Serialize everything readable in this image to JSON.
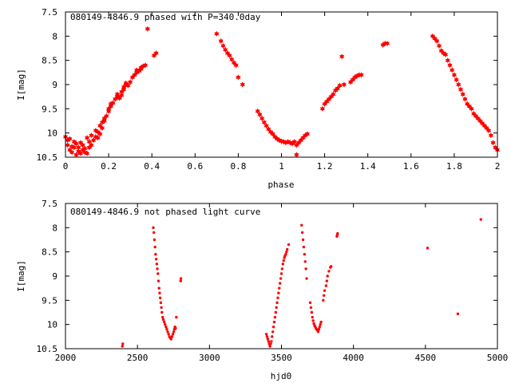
{
  "chart_data": [
    {
      "type": "scatter",
      "title": "080149-4846.9 phased with P=340.0day",
      "xlabel": "phase",
      "ylabel": "I[mag]",
      "xlim": [
        0,
        2
      ],
      "ylim": [
        7.5,
        10.5
      ],
      "y_inverted": true,
      "grid": false,
      "legend": "none",
      "marker": "filled-star",
      "color": "#ff0000",
      "xticks": [
        "0",
        "0.2",
        "0.4",
        "0.6",
        "0.8",
        "1",
        "1.2",
        "1.4",
        "1.6",
        "1.8",
        "2"
      ],
      "yticks": [
        "7.5",
        "8",
        "8.5",
        "9",
        "9.5",
        "10",
        "10.5"
      ],
      "series": [
        {
          "points": [
            [
              0.0,
              10.08
            ],
            [
              0.01,
              10.15
            ],
            [
              0.01,
              10.25
            ],
            [
              0.02,
              10.35
            ],
            [
              0.02,
              10.12
            ],
            [
              0.03,
              10.28
            ],
            [
              0.03,
              10.4
            ],
            [
              0.04,
              10.18
            ],
            [
              0.04,
              10.3
            ],
            [
              0.05,
              10.45
            ],
            [
              0.05,
              10.22
            ],
            [
              0.06,
              10.38
            ],
            [
              0.06,
              10.3
            ],
            [
              0.07,
              10.42
            ],
            [
              0.07,
              10.2
            ],
            [
              0.08,
              10.35
            ],
            [
              0.08,
              10.25
            ],
            [
              0.09,
              10.4
            ],
            [
              0.09,
              10.32
            ],
            [
              0.1,
              10.42
            ],
            [
              0.1,
              10.1
            ],
            [
              0.11,
              10.3
            ],
            [
              0.11,
              10.18
            ],
            [
              0.12,
              10.05
            ],
            [
              0.12,
              10.25
            ],
            [
              0.13,
              10.15
            ],
            [
              0.14,
              10.08
            ],
            [
              0.14,
              9.95
            ],
            [
              0.15,
              10.1
            ],
            [
              0.15,
              9.98
            ],
            [
              0.16,
              10.02
            ],
            [
              0.16,
              9.85
            ],
            [
              0.17,
              9.9
            ],
            [
              0.17,
              9.78
            ],
            [
              0.18,
              9.75
            ],
            [
              0.18,
              9.7
            ],
            [
              0.19,
              9.65
            ],
            [
              0.2,
              9.55
            ],
            [
              0.2,
              9.5
            ],
            [
              0.21,
              9.45
            ],
            [
              0.21,
              9.4
            ],
            [
              0.22,
              9.38
            ],
            [
              0.23,
              9.3
            ],
            [
              0.24,
              9.25
            ],
            [
              0.24,
              9.2
            ],
            [
              0.25,
              9.28
            ],
            [
              0.26,
              9.22
            ],
            [
              0.26,
              9.15
            ],
            [
              0.27,
              9.1
            ],
            [
              0.27,
              9.05
            ],
            [
              0.28,
              9.0
            ],
            [
              0.28,
              8.97
            ],
            [
              0.29,
              9.02
            ],
            [
              0.3,
              8.95
            ],
            [
              0.31,
              8.85
            ],
            [
              0.32,
              8.8
            ],
            [
              0.33,
              8.75
            ],
            [
              0.33,
              8.7
            ],
            [
              0.34,
              8.72
            ],
            [
              0.35,
              8.68
            ],
            [
              0.35,
              8.65
            ],
            [
              0.36,
              8.62
            ],
            [
              0.37,
              8.6
            ],
            [
              0.38,
              7.85
            ],
            [
              0.41,
              8.4
            ],
            [
              0.42,
              8.35
            ],
            [
              0.7,
              7.95
            ],
            [
              0.72,
              8.1
            ],
            [
              0.73,
              8.2
            ],
            [
              0.74,
              8.28
            ],
            [
              0.75,
              8.35
            ],
            [
              0.76,
              8.4
            ],
            [
              0.77,
              8.48
            ],
            [
              0.78,
              8.55
            ],
            [
              0.79,
              8.6
            ],
            [
              0.8,
              8.85
            ],
            [
              0.82,
              9.0
            ],
            [
              0.89,
              9.55
            ],
            [
              0.9,
              9.62
            ],
            [
              0.91,
              9.7
            ],
            [
              0.92,
              9.78
            ],
            [
              0.93,
              9.85
            ],
            [
              0.94,
              9.92
            ],
            [
              0.95,
              9.98
            ],
            [
              0.96,
              10.02
            ],
            [
              0.97,
              10.08
            ],
            [
              0.98,
              10.12
            ],
            [
              0.99,
              10.15
            ],
            [
              1.0,
              10.17
            ],
            [
              1.01,
              10.18
            ],
            [
              1.02,
              10.2
            ],
            [
              1.03,
              10.18
            ],
            [
              1.04,
              10.2
            ],
            [
              1.05,
              10.22
            ],
            [
              1.06,
              10.18
            ],
            [
              1.07,
              10.25
            ],
            [
              1.07,
              10.45
            ],
            [
              1.08,
              10.2
            ],
            [
              1.09,
              10.15
            ],
            [
              1.1,
              10.1
            ],
            [
              1.11,
              10.05
            ],
            [
              1.12,
              10.02
            ],
            [
              1.19,
              9.5
            ],
            [
              1.2,
              9.4
            ],
            [
              1.21,
              9.35
            ],
            [
              1.22,
              9.3
            ],
            [
              1.23,
              9.25
            ],
            [
              1.24,
              9.2
            ],
            [
              1.25,
              9.12
            ],
            [
              1.26,
              9.08
            ],
            [
              1.27,
              9.02
            ],
            [
              1.28,
              8.42
            ],
            [
              1.29,
              9.0
            ],
            [
              1.32,
              8.95
            ],
            [
              1.33,
              8.9
            ],
            [
              1.34,
              8.85
            ],
            [
              1.35,
              8.82
            ],
            [
              1.36,
              8.8
            ],
            [
              1.37,
              8.8
            ],
            [
              1.47,
              8.18
            ],
            [
              1.48,
              8.15
            ],
            [
              1.49,
              8.15
            ],
            [
              1.7,
              8.0
            ],
            [
              1.71,
              8.05
            ],
            [
              1.72,
              8.1
            ],
            [
              1.73,
              8.2
            ],
            [
              1.74,
              8.3
            ],
            [
              1.75,
              8.35
            ],
            [
              1.76,
              8.38
            ],
            [
              1.77,
              8.5
            ],
            [
              1.78,
              8.6
            ],
            [
              1.79,
              8.7
            ],
            [
              1.8,
              8.8
            ],
            [
              1.81,
              8.9
            ],
            [
              1.82,
              9.0
            ],
            [
              1.83,
              9.1
            ],
            [
              1.84,
              9.2
            ],
            [
              1.85,
              9.3
            ],
            [
              1.86,
              9.4
            ],
            [
              1.87,
              9.45
            ],
            [
              1.88,
              9.5
            ],
            [
              1.89,
              9.6
            ],
            [
              1.9,
              9.65
            ],
            [
              1.91,
              9.7
            ],
            [
              1.92,
              9.75
            ],
            [
              1.93,
              9.8
            ],
            [
              1.94,
              9.85
            ],
            [
              1.95,
              9.9
            ],
            [
              1.96,
              9.95
            ],
            [
              1.97,
              10.05
            ],
            [
              1.98,
              10.2
            ],
            [
              1.99,
              10.3
            ],
            [
              2.0,
              10.35
            ]
          ]
        }
      ]
    },
    {
      "type": "scatter",
      "title": "080149-4846.9 not phased light curve",
      "xlabel": "hjd0",
      "ylabel": "I[mag]",
      "xlim": [
        2000,
        5000
      ],
      "ylim": [
        7.5,
        10.5
      ],
      "y_inverted": true,
      "grid": false,
      "legend": "none",
      "marker": "dot",
      "color": "#ff0000",
      "xticks": [
        "2000",
        "2500",
        "3000",
        "3500",
        "4000",
        "4500",
        "5000"
      ],
      "yticks": [
        "7.5",
        "8",
        "8.5",
        "9",
        "9.5",
        "10",
        "10.5"
      ],
      "series": [
        {
          "points": [
            [
              2395,
              10.45
            ],
            [
              2398,
              10.4
            ],
            [
              2610,
              8.0
            ],
            [
              2614,
              8.1
            ],
            [
              2618,
              8.25
            ],
            [
              2622,
              8.4
            ],
            [
              2626,
              8.55
            ],
            [
              2630,
              8.65
            ],
            [
              2634,
              8.75
            ],
            [
              2638,
              8.85
            ],
            [
              2642,
              8.95
            ],
            [
              2646,
              9.1
            ],
            [
              2650,
              9.25
            ],
            [
              2654,
              9.35
            ],
            [
              2658,
              9.45
            ],
            [
              2662,
              9.55
            ],
            [
              2666,
              9.65
            ],
            [
              2670,
              9.75
            ],
            [
              2675,
              9.85
            ],
            [
              2680,
              9.9
            ],
            [
              2686,
              9.95
            ],
            [
              2692,
              10.0
            ],
            [
              2698,
              10.05
            ],
            [
              2704,
              10.1
            ],
            [
              2710,
              10.15
            ],
            [
              2716,
              10.2
            ],
            [
              2722,
              10.25
            ],
            [
              2728,
              10.28
            ],
            [
              2734,
              10.3
            ],
            [
              2740,
              10.25
            ],
            [
              2746,
              10.2
            ],
            [
              2752,
              10.15
            ],
            [
              2756,
              10.1
            ],
            [
              2760,
              10.05
            ],
            [
              2765,
              10.08
            ],
            [
              2770,
              9.85
            ],
            [
              2800,
              9.1
            ],
            [
              2802,
              9.05
            ],
            [
              3395,
              10.2
            ],
            [
              3400,
              10.25
            ],
            [
              3405,
              10.3
            ],
            [
              3410,
              10.35
            ],
            [
              3415,
              10.4
            ],
            [
              3420,
              10.45
            ],
            [
              3425,
              10.4
            ],
            [
              3430,
              10.35
            ],
            [
              3435,
              10.25
            ],
            [
              3440,
              10.15
            ],
            [
              3445,
              10.05
            ],
            [
              3450,
              9.95
            ],
            [
              3455,
              9.85
            ],
            [
              3460,
              9.75
            ],
            [
              3465,
              9.65
            ],
            [
              3470,
              9.55
            ],
            [
              3475,
              9.45
            ],
            [
              3480,
              9.35
            ],
            [
              3485,
              9.25
            ],
            [
              3490,
              9.15
            ],
            [
              3495,
              9.05
            ],
            [
              3500,
              8.95
            ],
            [
              3505,
              8.85
            ],
            [
              3510,
              8.75
            ],
            [
              3515,
              8.68
            ],
            [
              3520,
              8.62
            ],
            [
              3525,
              8.58
            ],
            [
              3530,
              8.55
            ],
            [
              3535,
              8.5
            ],
            [
              3540,
              8.45
            ],
            [
              3550,
              8.35
            ],
            [
              3640,
              7.95
            ],
            [
              3645,
              8.1
            ],
            [
              3650,
              8.25
            ],
            [
              3655,
              8.4
            ],
            [
              3660,
              8.55
            ],
            [
              3665,
              8.7
            ],
            [
              3670,
              8.85
            ],
            [
              3675,
              9.05
            ],
            [
              3700,
              9.55
            ],
            [
              3705,
              9.65
            ],
            [
              3710,
              9.75
            ],
            [
              3715,
              9.85
            ],
            [
              3720,
              9.92
            ],
            [
              3725,
              9.98
            ],
            [
              3730,
              10.02
            ],
            [
              3735,
              10.05
            ],
            [
              3740,
              10.08
            ],
            [
              3745,
              10.1
            ],
            [
              3750,
              10.12
            ],
            [
              3755,
              10.15
            ],
            [
              3760,
              10.1
            ],
            [
              3765,
              10.05
            ],
            [
              3770,
              10.0
            ],
            [
              3775,
              9.95
            ],
            [
              3790,
              9.5
            ],
            [
              3795,
              9.4
            ],
            [
              3800,
              9.3
            ],
            [
              3810,
              9.2
            ],
            [
              3815,
              9.1
            ],
            [
              3820,
              9.0
            ],
            [
              3830,
              8.9
            ],
            [
              3840,
              8.82
            ],
            [
              3845,
              8.8
            ],
            [
              3885,
              8.18
            ],
            [
              3888,
              8.15
            ],
            [
              3890,
              8.12
            ],
            [
              4515,
              8.42
            ],
            [
              4725,
              9.78
            ],
            [
              4885,
              7.83
            ]
          ]
        }
      ]
    }
  ]
}
